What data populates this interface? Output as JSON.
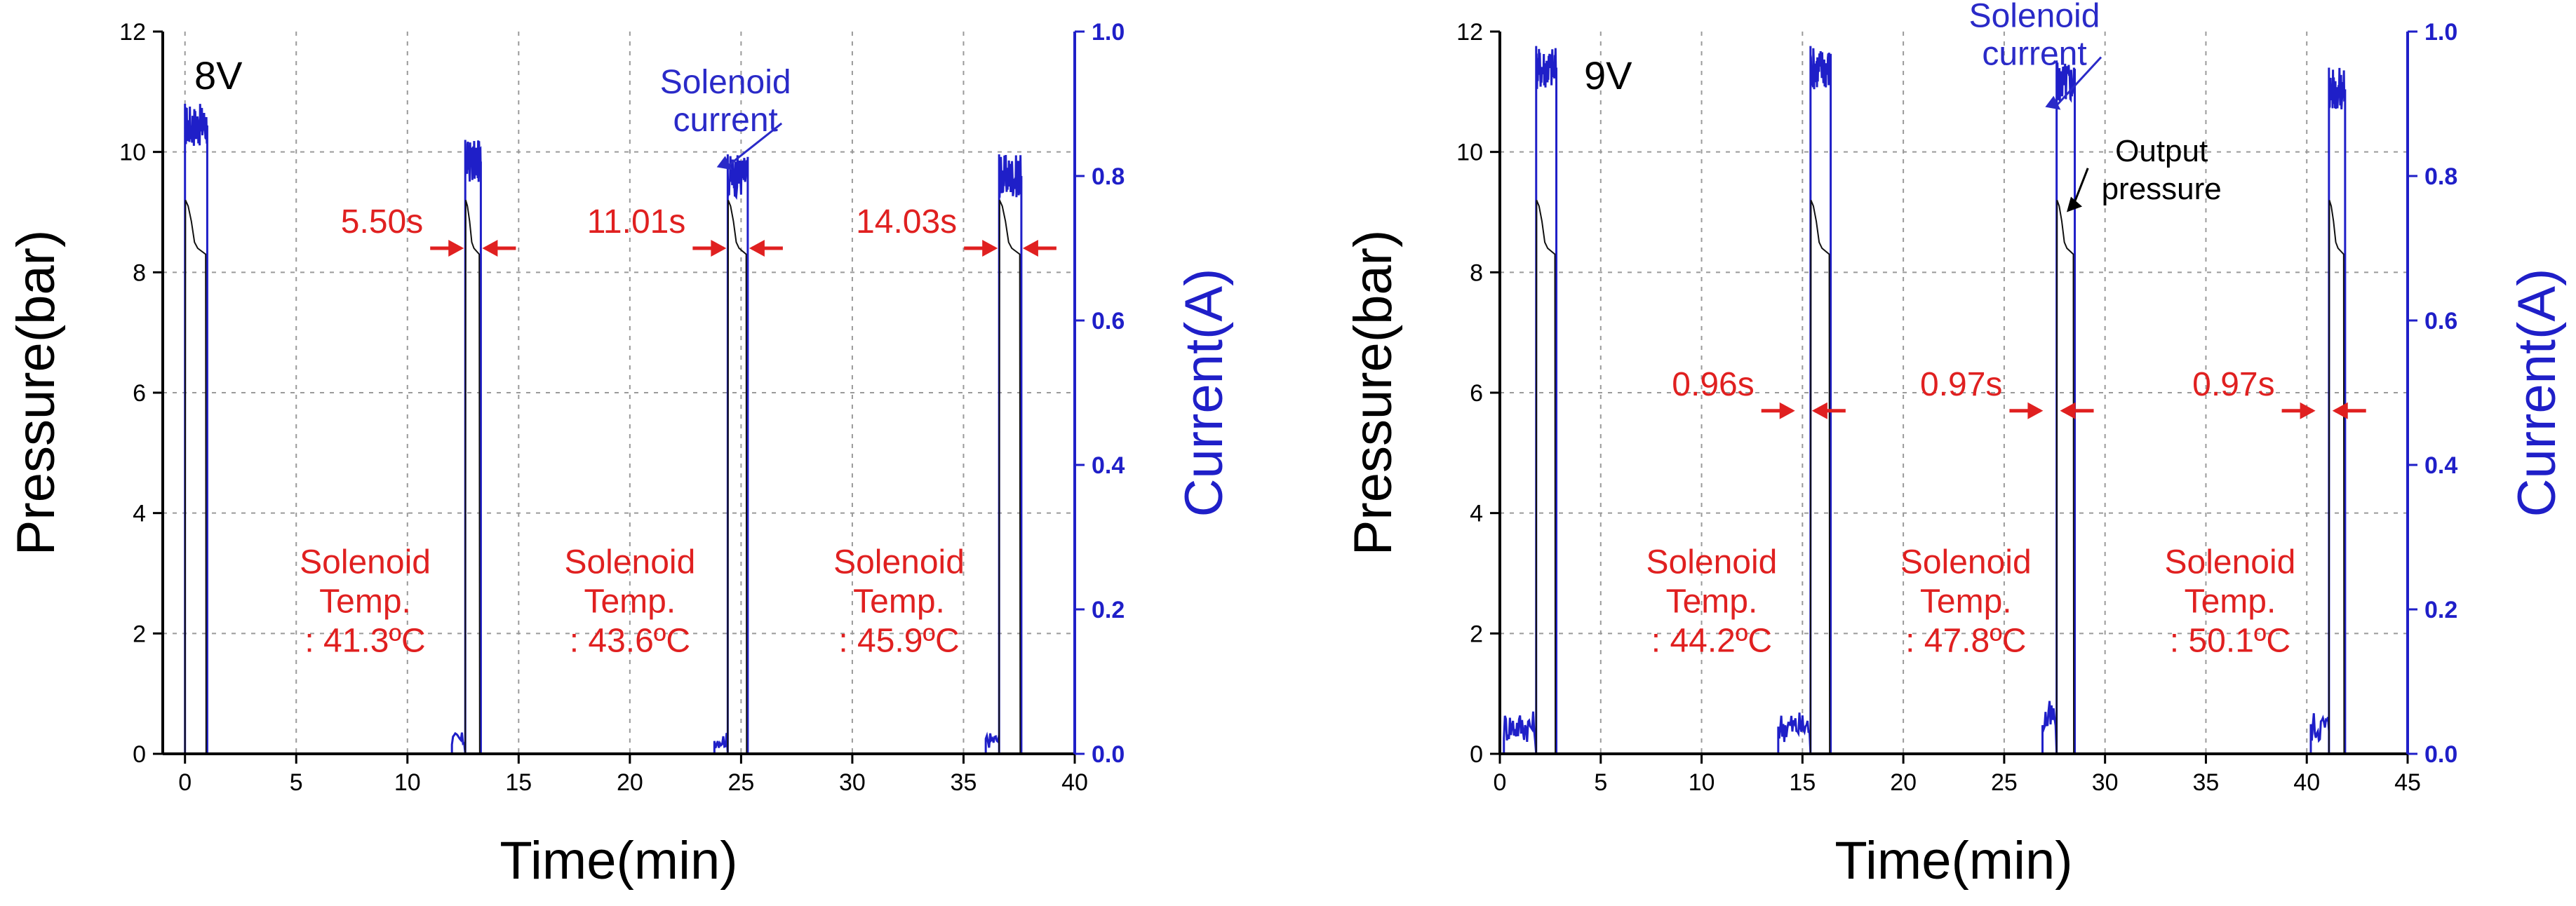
{
  "chart_data": [
    {
      "type": "line",
      "panel": "left",
      "label": "8V",
      "xlabel": "Time(min)",
      "ylabel": "Pressure(bar)",
      "ylabel_right": "Current(A)",
      "xlim": [
        -1,
        40
      ],
      "ylim": [
        0,
        12
      ],
      "ylim_right": [
        0,
        1.0
      ],
      "xticks": [
        0,
        5,
        10,
        15,
        20,
        25,
        30,
        35,
        40
      ],
      "yticks": [
        0,
        2,
        4,
        6,
        8,
        10,
        12
      ],
      "yticks_right": [
        "0.0",
        "0.2",
        "0.4",
        "0.6",
        "0.8",
        "1.0"
      ],
      "grid": true,
      "series": [
        {
          "name": "Solenoid current",
          "axis": "right",
          "color": "#1f1fc8",
          "pulses": [
            {
              "start": 0.0,
              "end": 1.0,
              "level": 0.87,
              "pre_level": 0.0
            },
            {
              "start": 12.6,
              "end": 13.3,
              "level": 0.82,
              "pre_level": 0.02
            },
            {
              "start": 24.4,
              "end": 25.3,
              "level": 0.8,
              "pre_level": 0.02
            },
            {
              "start": 36.6,
              "end": 37.6,
              "level": 0.8,
              "pre_level": 0.02
            }
          ]
        },
        {
          "name": "Output pressure",
          "axis": "left",
          "color": "#111111",
          "pulses": [
            {
              "start": 0.0,
              "end": 0.95,
              "peak": 9.2,
              "plateau": 8.4
            },
            {
              "start": 12.6,
              "end": 13.25,
              "peak": 9.2,
              "plateau": 8.4
            },
            {
              "start": 24.4,
              "end": 25.25,
              "peak": 9.2,
              "plateau": 8.4
            },
            {
              "start": 36.6,
              "end": 37.55,
              "peak": 9.2,
              "plateau": 8.4
            }
          ]
        }
      ],
      "annotations": {
        "current_label": {
          "line1": "Solenoid",
          "line2": "current",
          "x": 24.3,
          "y": 10.3
        },
        "intervals": [
          {
            "text": "5.50s",
            "x_left": 12.6,
            "x_right": 13.3,
            "y": 8.4
          },
          {
            "text": "11.01s",
            "x_left": 24.4,
            "x_right": 25.3,
            "y": 8.4
          },
          {
            "text": "14.03s",
            "x_left": 36.6,
            "x_right": 37.6,
            "y": 8.4
          }
        ],
        "temps": [
          {
            "line1": "Solenoid",
            "line2": "Temp.",
            "line3": ": 41.3ºC",
            "x": 8.1
          },
          {
            "line1": "Solenoid",
            "line2": "Temp.",
            "line3": ": 43.6ºC",
            "x": 20.0
          },
          {
            "line1": "Solenoid",
            "line2": "Temp.",
            "line3": ": 45.9ºC",
            "x": 32.1
          }
        ]
      }
    },
    {
      "type": "line",
      "panel": "right",
      "label": "9V",
      "xlabel": "Time(min)",
      "ylabel": "Pressure(bar)",
      "ylabel_right": "Current(A)",
      "xlim": [
        0,
        45
      ],
      "ylim": [
        0,
        12
      ],
      "ylim_right": [
        0,
        1.0
      ],
      "xticks": [
        0,
        5,
        10,
        15,
        20,
        25,
        30,
        35,
        40,
        45
      ],
      "yticks": [
        0,
        2,
        4,
        6,
        8,
        10,
        12
      ],
      "yticks_right": [
        "0.0",
        "0.2",
        "0.4",
        "0.6",
        "0.8",
        "1.0"
      ],
      "grid": true,
      "series": [
        {
          "name": "Solenoid current",
          "axis": "right",
          "color": "#1f1fc8",
          "pulses": [
            {
              "start": 1.8,
              "end": 2.8,
              "level": 0.95,
              "pre_level": 0.04,
              "pre_start": 0.2
            },
            {
              "start": 15.4,
              "end": 16.4,
              "level": 0.95,
              "pre_level": 0.04,
              "pre_start": 13.8
            },
            {
              "start": 27.6,
              "end": 28.5,
              "level": 0.93,
              "pre_level": 0.05,
              "pre_start": 26.9
            },
            {
              "start": 41.1,
              "end": 41.9,
              "level": 0.92,
              "pre_level": 0.04,
              "pre_start": 40.2
            }
          ]
        },
        {
          "name": "Output pressure",
          "axis": "left",
          "color": "#111111",
          "pulses": [
            {
              "start": 1.8,
              "end": 2.75,
              "peak": 9.2,
              "plateau": 8.4
            },
            {
              "start": 15.4,
              "end": 16.35,
              "peak": 9.2,
              "plateau": 8.4
            },
            {
              "start": 27.6,
              "end": 28.45,
              "peak": 9.2,
              "plateau": 8.4
            },
            {
              "start": 41.1,
              "end": 41.85,
              "peak": 9.2,
              "plateau": 8.4
            }
          ]
        }
      ],
      "annotations": {
        "current_label": {
          "line1": "Solenoid",
          "line2": "current",
          "x": 26.5,
          "y": 11.4
        },
        "output_label": {
          "line1": "Output",
          "line2": "pressure",
          "x": 32.8,
          "y": 9.8
        },
        "intervals": [
          {
            "text": "0.96s",
            "x_left": 14.7,
            "x_right": 15.4,
            "y": 5.7
          },
          {
            "text": "0.97s",
            "x_left": 27.0,
            "x_right": 27.7,
            "y": 5.7
          },
          {
            "text": "0.97s",
            "x_left": 40.5,
            "x_right": 41.2,
            "y": 5.7
          }
        ],
        "temps": [
          {
            "line1": "Solenoid",
            "line2": "Temp.",
            "line3": ": 44.2ºC",
            "x": 10.5
          },
          {
            "line1": "Solenoid",
            "line2": "Temp.",
            "line3": ": 47.8ºC",
            "x": 23.1
          },
          {
            "line1": "Solenoid",
            "line2": "Temp.",
            "line3": ": 50.1ºC",
            "x": 36.2
          }
        ]
      }
    }
  ]
}
